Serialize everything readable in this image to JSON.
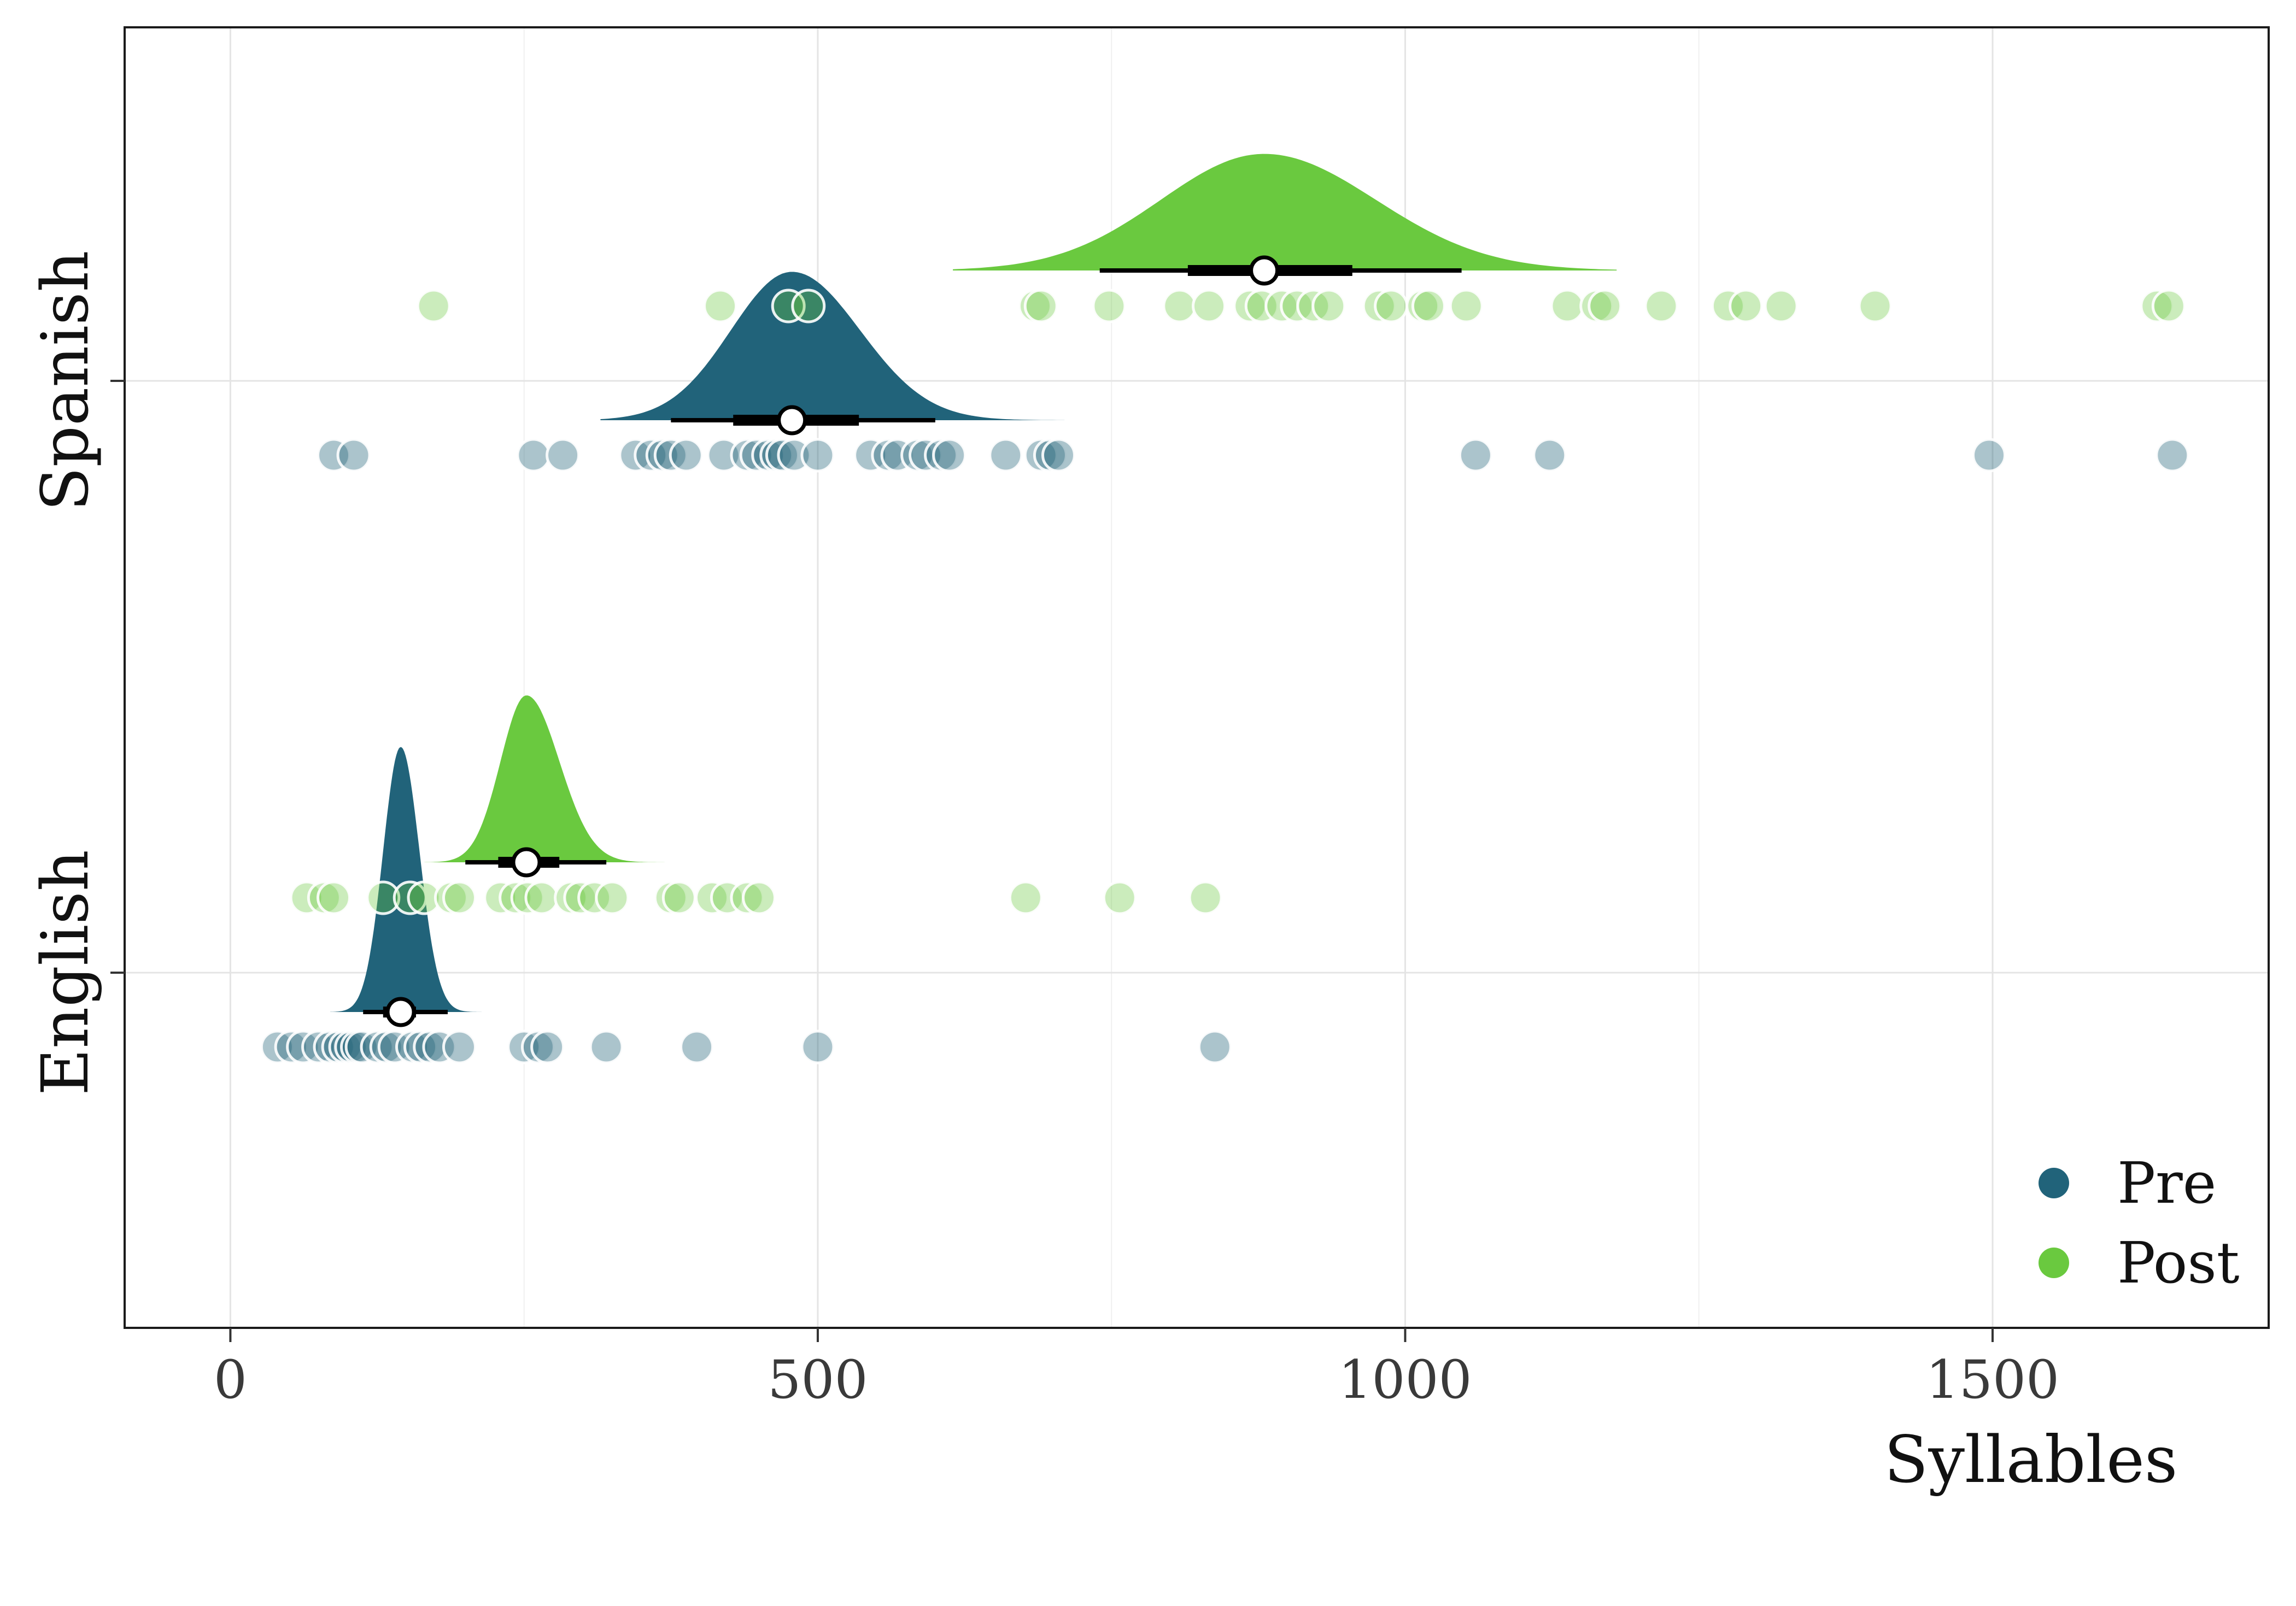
{
  "chart_data": {
    "type": "raincloud",
    "title": "",
    "xlabel": "Syllables",
    "ylabel": "",
    "xlim": [
      -90,
      1735
    ],
    "xticks": [
      0,
      500,
      1000,
      1500
    ],
    "grid": true,
    "legend": {
      "position": "bottom-right",
      "entries": [
        "Pre",
        "Post"
      ]
    },
    "colors": {
      "Pre": "#21637a",
      "Post": "#6ac93f"
    },
    "categories": [
      "Spanish",
      "English"
    ],
    "groups": [
      {
        "category": "Spanish",
        "series": "Pre",
        "density": {
          "min": 315,
          "max": 710,
          "mode": 478,
          "spread_left": 52,
          "spread_right": 58,
          "peak": 0.56
        },
        "interval": {
          "point": 478,
          "inner": [
            428,
            535
          ],
          "outer": [
            375,
            600
          ]
        },
        "points": [
          88,
          105,
          258,
          283,
          345,
          358,
          368,
          375,
          388,
          420,
          440,
          448,
          458,
          465,
          470,
          480,
          500,
          545,
          560,
          568,
          585,
          592,
          605,
          612,
          660,
          690,
          698,
          705,
          1060,
          1123,
          1497,
          1653
        ]
      },
      {
        "category": "Spanish",
        "series": "Post",
        "density": {
          "min": 615,
          "max": 1180,
          "mode": 880,
          "spread_left": 88,
          "spread_right": 95,
          "peak": 0.44
        },
        "interval": {
          "point": 880,
          "inner": [
            815,
            955
          ],
          "outer": [
            740,
            1048
          ]
        },
        "points": [
          173,
          417,
          475,
          492,
          685,
          690,
          748,
          808,
          833,
          868,
          878,
          895,
          908,
          922,
          935,
          978,
          988,
          1015,
          1020,
          1052,
          1138,
          1163,
          1170,
          1218,
          1275,
          1290,
          1320,
          1400,
          1640,
          1650
        ]
      },
      {
        "category": "English",
        "series": "Pre",
        "density": {
          "min": 85,
          "max": 220,
          "mode": 145,
          "spread_left": 15,
          "spread_right": 16,
          "peak": 1.0
        },
        "interval": {
          "point": 145,
          "inner": [
            130,
            158
          ],
          "outer": [
            113,
            185
          ]
        },
        "points": [
          40,
          52,
          62,
          75,
          85,
          92,
          98,
          103,
          108,
          112,
          125,
          133,
          140,
          155,
          162,
          170,
          178,
          195,
          250,
          262,
          270,
          320,
          397,
          500,
          838
        ]
      },
      {
        "category": "English",
        "series": "Post",
        "density": {
          "min": 165,
          "max": 385,
          "mode": 252,
          "spread_left": 22,
          "spread_right": 28,
          "peak": 0.63
        },
        "interval": {
          "point": 252,
          "inner": [
            228,
            280
          ],
          "outer": [
            200,
            320
          ]
        },
        "points": [
          65,
          80,
          88,
          130,
          153,
          165,
          188,
          195,
          230,
          243,
          253,
          265,
          290,
          298,
          310,
          325,
          375,
          382,
          410,
          423,
          440,
          450,
          677,
          757,
          830
        ]
      }
    ]
  }
}
